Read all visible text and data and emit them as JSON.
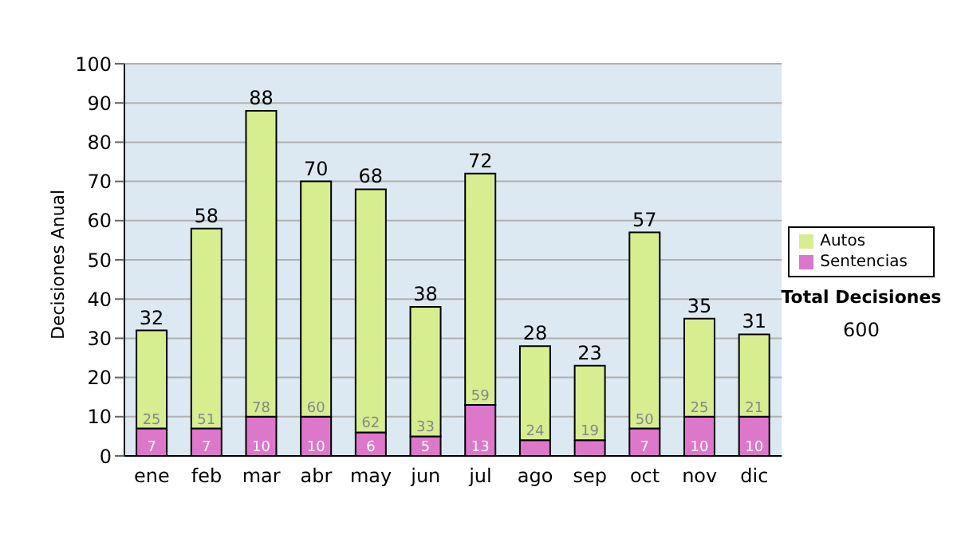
{
  "chart_data": {
    "type": "bar",
    "stacked": true,
    "ylabel": "Decisiones Anual",
    "categories": [
      "ene",
      "feb",
      "mar",
      "abr",
      "may",
      "jun",
      "jul",
      "ago",
      "sep",
      "oct",
      "nov",
      "dic"
    ],
    "series": [
      {
        "name": "Sentencias",
        "color": "#dd77c9",
        "values": [
          7,
          7,
          10,
          10,
          6,
          5,
          13,
          4,
          4,
          7,
          10,
          10
        ],
        "value_labels": [
          "7",
          "7",
          "10",
          "10",
          "6",
          "5",
          "13",
          null,
          null,
          "7",
          "10",
          "10"
        ]
      },
      {
        "name": "Autos",
        "color": "#d6ee90",
        "values": [
          25,
          51,
          78,
          60,
          62,
          33,
          59,
          24,
          19,
          50,
          25,
          21
        ],
        "value_labels": [
          "25",
          "51",
          "78",
          "60",
          "62",
          "33",
          "59",
          "24",
          "19",
          "50",
          "25",
          "21"
        ]
      }
    ],
    "totals": [
      "32",
      "58",
      "88",
      "70",
      "68",
      "38",
      "72",
      "28",
      "23",
      "57",
      "35",
      "31"
    ],
    "ylim": [
      0,
      100
    ],
    "yticks": [
      0,
      10,
      20,
      30,
      40,
      50,
      60,
      70,
      80,
      90,
      100
    ],
    "grid": "y",
    "legend": "right",
    "annotations": [
      "Total Decisiones",
      "600"
    ]
  }
}
